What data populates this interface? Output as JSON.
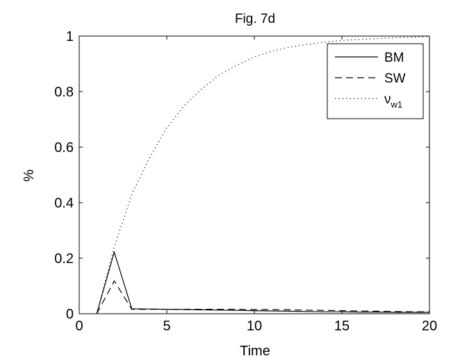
{
  "chart_data": {
    "type": "line",
    "title": "Fig. 7d",
    "xlabel": "Time",
    "ylabel": "%",
    "xlim": [
      0,
      20
    ],
    "ylim": [
      0,
      1
    ],
    "xticks": [
      0,
      5,
      10,
      15,
      20
    ],
    "yticks": [
      0,
      0.2,
      0.4,
      0.6,
      0.8,
      1
    ],
    "xtick_labels": [
      "0",
      "5",
      "10",
      "15",
      "20"
    ],
    "ytick_labels": [
      "0",
      "0.2",
      "0.4",
      "0.6",
      "0.8",
      "1"
    ],
    "grid": false,
    "legend_position": "top-right",
    "series": [
      {
        "name": "BM",
        "style": "solid",
        "color": "#000000",
        "x": [
          1,
          2,
          3,
          4,
          5,
          6,
          7,
          8,
          9,
          10,
          11,
          12,
          13,
          14,
          15,
          16,
          17,
          18,
          19,
          20
        ],
        "y": [
          0,
          0.222,
          0.018,
          0.017,
          0.016,
          0.015,
          0.014,
          0.013,
          0.012,
          0.011,
          0.01,
          0.009,
          0.008,
          0.007,
          0.007,
          0.006,
          0.006,
          0.005,
          0.005,
          0.005
        ]
      },
      {
        "name": "SW",
        "style": "dashed",
        "color": "#000000",
        "x": [
          1,
          2,
          3,
          4,
          5,
          6,
          7,
          8,
          9,
          10,
          11,
          12,
          13,
          14,
          15,
          16,
          17,
          18,
          19,
          20
        ],
        "y": [
          0,
          0.118,
          0.016,
          0.016,
          0.016,
          0.016,
          0.016,
          0.016,
          0.016,
          0.015,
          0.015,
          0.014,
          0.013,
          0.012,
          0.011,
          0.01,
          0.009,
          0.008,
          0.007,
          0.007
        ]
      },
      {
        "name": "ν",
        "name_subscript": "w1",
        "style": "dotted",
        "color": "#000000",
        "x": [
          1,
          2,
          3,
          4,
          5,
          6,
          7,
          8,
          9,
          10,
          11,
          12,
          13,
          14,
          15,
          16,
          17,
          18,
          19,
          20
        ],
        "y": [
          0,
          0.24,
          0.43,
          0.56,
          0.67,
          0.75,
          0.81,
          0.86,
          0.895,
          0.925,
          0.945,
          0.96,
          0.97,
          0.978,
          0.984,
          0.988,
          0.991,
          0.994,
          0.996,
          0.998
        ]
      }
    ]
  }
}
